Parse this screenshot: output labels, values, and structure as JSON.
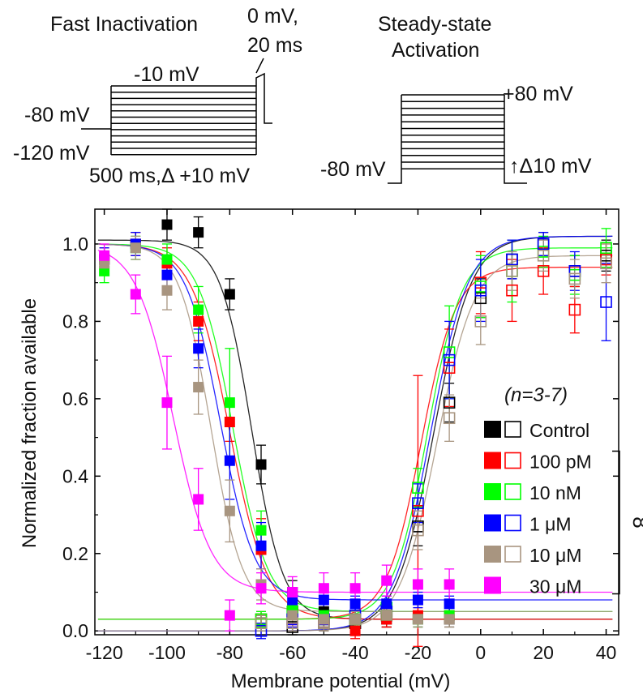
{
  "protocols": {
    "inactivation": {
      "title": "Fast Inactivation",
      "test_pulse_line1": "0 mV,",
      "test_pulse_line2": "20 ms",
      "top_voltage": "-10 mV",
      "holding_voltage": "-80 mV",
      "bottom_voltage": "-120 mV",
      "step_info": "500 ms,Δ +10 mV"
    },
    "activation": {
      "title_line1": "Steady-state",
      "title_line2": "Activation",
      "top_voltage": "+80 mV",
      "holding_voltage": "-80 mV",
      "step_info": "↑Δ10 mV"
    }
  },
  "legend": {
    "n_label": "(n=3-7)",
    "entries": [
      {
        "label": "Control",
        "color": "#000000"
      },
      {
        "label": "100 pM",
        "color": "#ff0000"
      },
      {
        "label": "10 nM",
        "color": "#00ff00"
      },
      {
        "label": "1 μM",
        "color": "#0000ff"
      },
      {
        "label": "10 μM",
        "color": "#a89580"
      },
      {
        "label": "30 μM",
        "color": "#ff00ff"
      }
    ],
    "bracket_label": "8"
  },
  "chart_data": {
    "type": "scatter",
    "xlabel": "Membrane potential (mV)",
    "ylabel": "Normalized fraction available",
    "xlim": [
      -123,
      44
    ],
    "ylim": [
      -0.01,
      1.09
    ],
    "xticks": [
      -120,
      -100,
      -80,
      -60,
      -40,
      -20,
      0,
      20,
      40
    ],
    "xtick_labels": [
      "-120",
      "-100",
      "-80",
      "-60",
      "-40",
      "-20",
      "0",
      "20",
      "40"
    ],
    "yticks": [
      0.0,
      0.2,
      0.4,
      0.6,
      0.8,
      1.0
    ],
    "ytick_labels": [
      "0.0",
      "0.2",
      "0.4",
      "0.6",
      "0.8",
      "1.0"
    ],
    "series": [
      {
        "name": "Control",
        "color": "#000000",
        "inactivation": {
          "x": [
            -120,
            -110,
            -100,
            -90,
            -80,
            -70,
            -60,
            -50,
            -40,
            -30,
            -20,
            -10
          ],
          "y": [
            0.96,
            1.0,
            1.05,
            1.03,
            0.87,
            0.43,
            0.1,
            0.05,
            0.03,
            0.03,
            0.03,
            0.03
          ],
          "err": [
            0.02,
            0.03,
            0.04,
            0.04,
            0.04,
            0.05,
            0.03,
            0.02,
            0.02,
            0.02,
            0.02,
            0.02
          ],
          "fit_v_half": -73,
          "fit_k": 5.0,
          "fit_top": 1.01,
          "fit_bottom": 0.03
        },
        "activation": {
          "x": [
            -70,
            -60,
            -50,
            -40,
            -30,
            -20,
            -10,
            0,
            10,
            20,
            30,
            40
          ],
          "y": [
            0.02,
            0.01,
            0.02,
            0.02,
            0.05,
            0.27,
            0.59,
            0.86,
            0.96,
            1.0,
            0.93,
            0.97
          ],
          "err": [
            0.02,
            0.02,
            0.02,
            0.02,
            0.03,
            0.05,
            0.05,
            0.05,
            0.05,
            0.03,
            0.04,
            0.04
          ],
          "fit_v_half": -15,
          "fit_k": 6.0,
          "fit_top": 1.02,
          "fit_bottom": 0.0
        }
      },
      {
        "name": "100 pM",
        "color": "#ff0000",
        "inactivation": {
          "x": [
            -120,
            -110,
            -100,
            -90,
            -80,
            -70,
            -60,
            -50,
            -40,
            -30,
            -20,
            -10
          ],
          "y": [
            0.96,
            1.0,
            0.95,
            0.8,
            0.54,
            0.21,
            0.06,
            0.03,
            0.0,
            0.03,
            0.04,
            0.04
          ],
          "err": [
            0.03,
            0.03,
            0.04,
            0.05,
            0.05,
            0.08,
            0.04,
            0.02,
            0.02,
            0.02,
            0.02,
            0.02
          ],
          "fit_v_half": -80,
          "fit_k": 6.0,
          "fit_top": 1.0,
          "fit_bottom": 0.03
        },
        "activation": {
          "x": [
            -70,
            -60,
            -50,
            -40,
            -30,
            -20,
            -10,
            0,
            10,
            20,
            30,
            40
          ],
          "y": [
            0.03,
            0.03,
            0.03,
            0.03,
            0.04,
            0.31,
            0.68,
            0.9,
            0.88,
            0.93,
            0.83,
            0.96
          ],
          "err": [
            0.02,
            0.02,
            0.02,
            0.02,
            0.03,
            0.35,
            0.1,
            0.08,
            0.08,
            0.06,
            0.06,
            0.04
          ],
          "fit_v_half": -19,
          "fit_k": 5.5,
          "fit_top": 0.94,
          "fit_bottom": 0.03
        }
      },
      {
        "name": "10 nM",
        "color": "#00ff00",
        "inactivation": {
          "x": [
            -120,
            -110,
            -100,
            -90,
            -80,
            -70,
            -60,
            -50,
            -40,
            -30,
            -20,
            -10
          ],
          "y": [
            0.93,
            0.99,
            0.96,
            0.83,
            0.59,
            0.26,
            0.06,
            0.04,
            0.03,
            0.04,
            0.03,
            0.04
          ],
          "err": [
            0.03,
            0.03,
            0.04,
            0.06,
            0.14,
            0.05,
            0.03,
            0.02,
            0.02,
            0.02,
            0.02,
            0.02
          ],
          "fit_v_half": -79,
          "fit_k": 5.5,
          "fit_top": 1.0,
          "fit_bottom": 0.05
        },
        "activation": {
          "x": [
            -70,
            -60,
            -50,
            -40,
            -30,
            -20,
            -10,
            0,
            10,
            20,
            30,
            40
          ],
          "y": [
            0.03,
            0.05,
            0.03,
            0.03,
            0.06,
            0.37,
            0.72,
            0.89,
            0.93,
            0.98,
            0.92,
            0.99
          ],
          "err": [
            0.02,
            0.02,
            0.02,
            0.02,
            0.03,
            0.05,
            0.12,
            0.08,
            0.08,
            0.04,
            0.05,
            0.05
          ],
          "fit_v_half": -17,
          "fit_k": 5.5,
          "fit_top": 0.99,
          "fit_bottom": 0.03
        }
      },
      {
        "name": "1 μM",
        "color": "#0000ff",
        "inactivation": {
          "x": [
            -120,
            -110,
            -100,
            -90,
            -80,
            -70,
            -60,
            -50,
            -40,
            -30,
            -20,
            -10
          ],
          "y": [
            0.96,
            1.0,
            0.92,
            0.73,
            0.44,
            0.22,
            0.08,
            0.08,
            0.07,
            0.07,
            0.08,
            0.07
          ],
          "err": [
            0.03,
            0.03,
            0.04,
            0.05,
            0.1,
            0.06,
            0.03,
            0.02,
            0.02,
            0.02,
            0.02,
            0.02
          ],
          "fit_v_half": -83,
          "fit_k": 5.5,
          "fit_top": 1.0,
          "fit_bottom": 0.08
        },
        "activation": {
          "x": [
            -70,
            -60,
            -50,
            -40,
            -30,
            -20,
            -10,
            0,
            10,
            20,
            30,
            40
          ],
          "y": [
            0.0,
            0.03,
            0.03,
            0.04,
            0.05,
            0.33,
            0.7,
            0.88,
            0.96,
            1.0,
            0.93,
            0.85
          ],
          "err": [
            0.02,
            0.02,
            0.02,
            0.02,
            0.03,
            0.05,
            0.1,
            0.08,
            0.05,
            0.03,
            0.05,
            0.1
          ],
          "fit_v_half": -16,
          "fit_k": 6.0,
          "fit_top": 1.02,
          "fit_bottom": 0.0
        }
      },
      {
        "name": "10 μM",
        "color": "#a89580",
        "inactivation": {
          "x": [
            -120,
            -110,
            -100,
            -90,
            -80,
            -70,
            -60,
            -50,
            -40,
            -30,
            -20,
            -10
          ],
          "y": [
            0.95,
            0.99,
            0.88,
            0.63,
            0.31,
            0.12,
            0.04,
            0.03,
            0.03,
            0.04,
            0.03,
            0.03
          ],
          "err": [
            0.03,
            0.03,
            0.05,
            0.07,
            0.08,
            0.04,
            0.02,
            0.02,
            0.02,
            0.02,
            0.02,
            0.02
          ],
          "fit_v_half": -86,
          "fit_k": 5.0,
          "fit_top": 1.0,
          "fit_bottom": 0.05
        },
        "activation": {
          "x": [
            -70,
            -60,
            -50,
            -40,
            -30,
            -20,
            -10,
            0,
            10,
            20,
            30,
            40
          ],
          "y": [
            0.02,
            0.02,
            0.02,
            0.03,
            0.04,
            0.26,
            0.55,
            0.8,
            0.93,
            0.97,
            0.91,
            0.95
          ],
          "err": [
            0.02,
            0.02,
            0.02,
            0.02,
            0.03,
            0.05,
            0.06,
            0.06,
            0.05,
            0.04,
            0.05,
            0.05
          ],
          "fit_v_half": -14,
          "fit_k": 6.0,
          "fit_top": 0.97,
          "fit_bottom": 0.0
        }
      },
      {
        "name": "30 μM",
        "color": "#ff00ff",
        "inactivation": {
          "x": [
            -120,
            -110,
            -100,
            -90,
            -80,
            -70,
            -60,
            -50,
            -40,
            -30,
            -20,
            -10
          ],
          "y": [
            0.97,
            0.87,
            0.59,
            0.34,
            0.04,
            0.11,
            0.1,
            0.11,
            0.11,
            0.13,
            0.12,
            0.12
          ],
          "err": [
            0.03,
            0.05,
            0.12,
            0.08,
            0.04,
            0.04,
            0.04,
            0.04,
            0.04,
            0.04,
            0.04,
            0.04
          ],
          "fit_v_half": -98,
          "fit_k": 6.0,
          "fit_top": 1.0,
          "fit_bottom": 0.1
        }
      }
    ]
  }
}
